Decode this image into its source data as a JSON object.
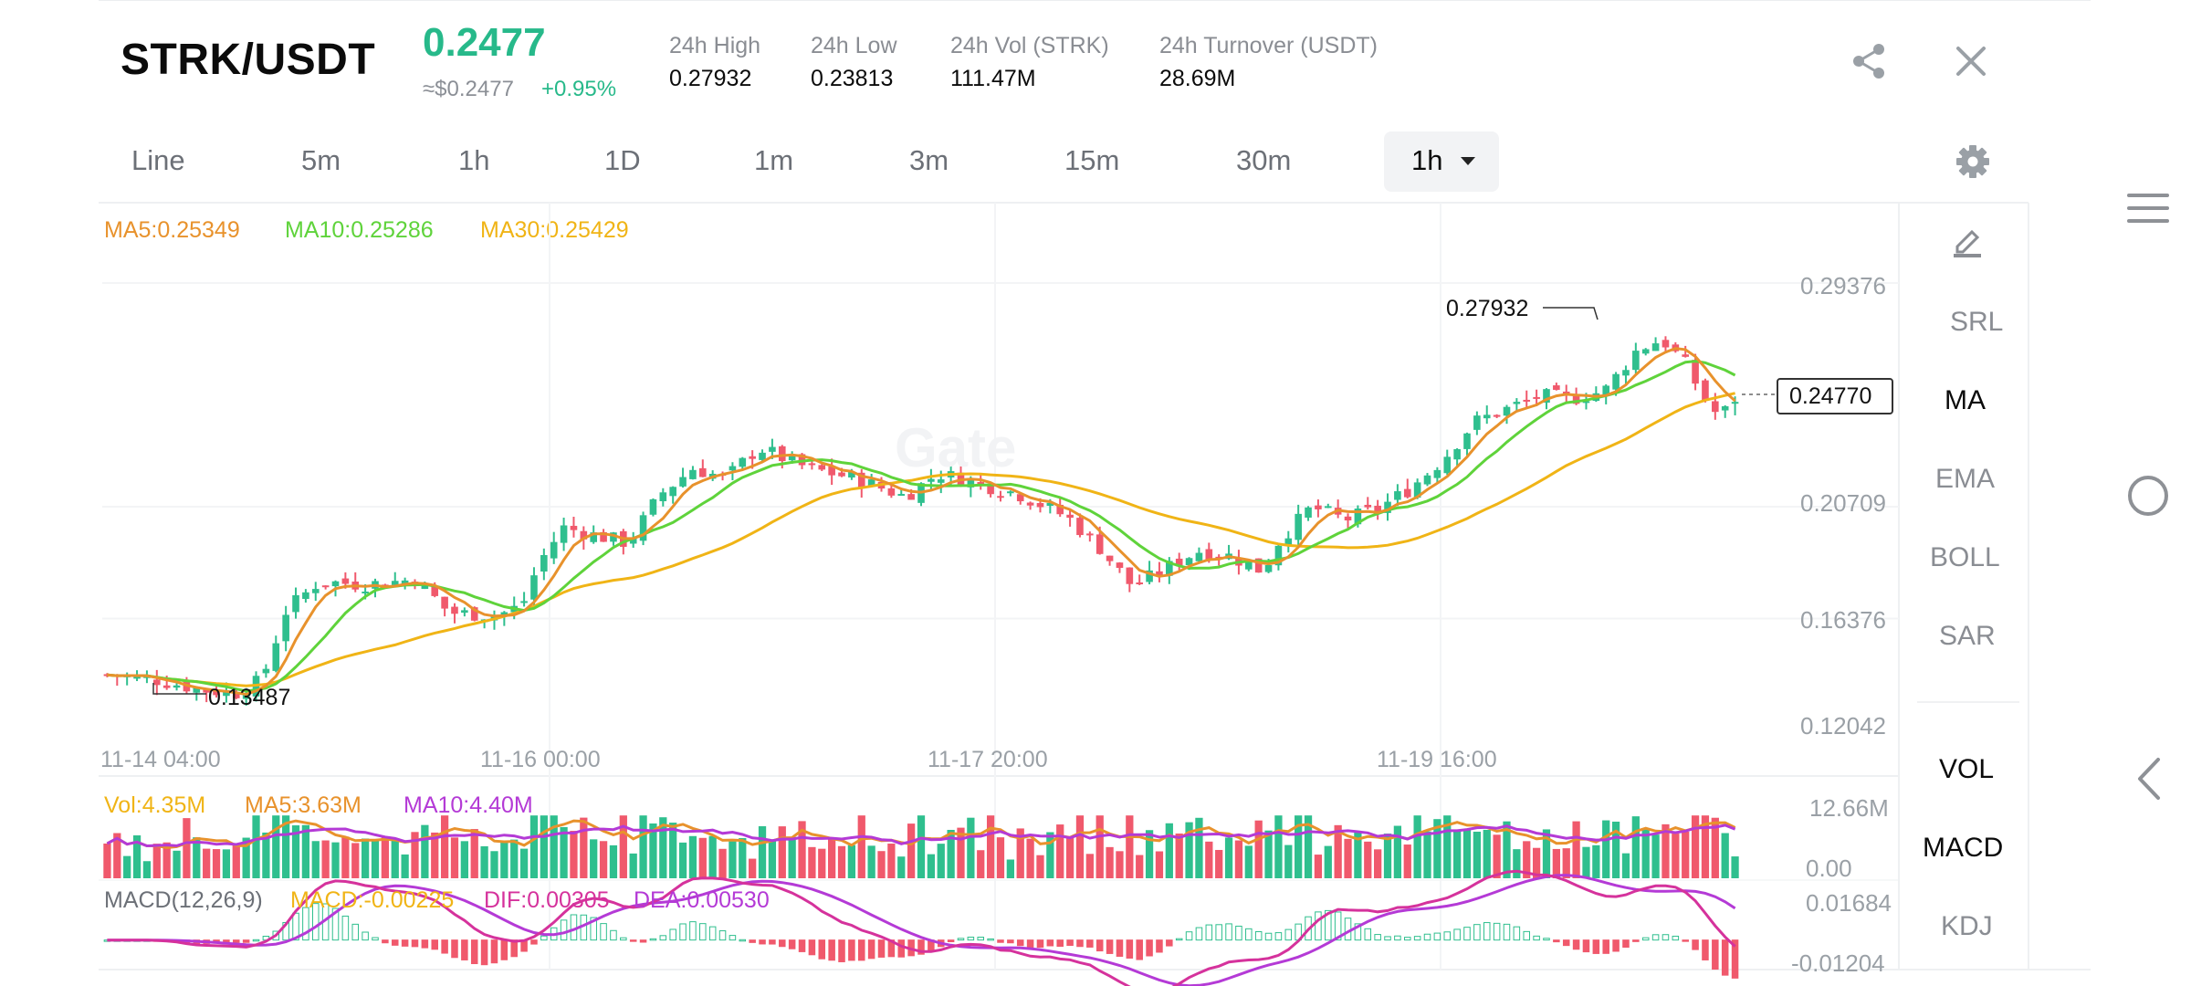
{
  "header": {
    "pair": "STRK/USDT",
    "last_price": "0.2477",
    "usd_price": "≈$0.2477",
    "change": "+0.95%",
    "stats": [
      {
        "label": "24h High",
        "value": "0.27932"
      },
      {
        "label": "24h Low",
        "value": "0.23813"
      },
      {
        "label": "24h Vol (STRK)",
        "value": "111.47M"
      },
      {
        "label": "24h Turnover (USDT)",
        "value": "28.69M"
      }
    ],
    "share_icon": "share-icon",
    "close_icon": "close-icon"
  },
  "timeframes": {
    "tabs": [
      "Line",
      "5m",
      "1h",
      "1D",
      "1m",
      "3m",
      "15m",
      "30m"
    ],
    "selected": "1h",
    "settings_icon": "gear-icon"
  },
  "indicators": {
    "ma5": "MA5:0.25349",
    "ma10": "MA10:0.25286",
    "ma30": "MA30:0.25429",
    "colors": {
      "ma5": "#e8922c",
      "ma10": "#5fd33b",
      "ma30": "#f0b416",
      "up": "#2fbf8e",
      "down": "#f0596c",
      "vol_ma10": "#b43ad6",
      "dif": "#d5329c"
    },
    "side_tools": [
      "SRL",
      "MA",
      "EMA",
      "BOLL",
      "SAR"
    ],
    "side_tools_active": "MA",
    "sub_tools": [
      "VOL",
      "MACD",
      "KDJ"
    ],
    "sub_tools_active": [
      "VOL",
      "MACD"
    ],
    "draw_icon": "pencil-icon"
  },
  "volume": {
    "vol": "Vol:4.35M",
    "ma5": "MA5:3.63M",
    "ma10": "MA10:4.40M",
    "y_max": "12.66M",
    "y_min": "0.00"
  },
  "macd": {
    "title": "MACD(12,26,9)",
    "macd": "MACD:-0.00225",
    "dif": "DIF:0.00305",
    "dea": "DEA:0.00530",
    "y_max": "0.01684",
    "y_min": "-0.01204"
  },
  "chart_data": {
    "type": "candlestick",
    "title": "",
    "y_ticks": [
      "0.29376",
      "0.20709",
      "0.16376",
      "0.12042"
    ],
    "x_ticks": [
      "11-14 04:00",
      "11-16 00:00",
      "11-17 20:00",
      "11-19 16:00"
    ],
    "high_marker": "0.27932",
    "low_marker": "0.13487",
    "current_price_label": "0.24770",
    "watermark": "Gate",
    "close_path": [
      {
        "t": 0.0,
        "v": 0.142
      },
      {
        "t": 0.03,
        "v": 0.14
      },
      {
        "t": 0.06,
        "v": 0.136
      },
      {
        "t": 0.08,
        "v": 0.135
      },
      {
        "t": 0.095,
        "v": 0.14
      },
      {
        "t": 0.11,
        "v": 0.167
      },
      {
        "t": 0.13,
        "v": 0.178
      },
      {
        "t": 0.16,
        "v": 0.177
      },
      {
        "t": 0.19,
        "v": 0.179
      },
      {
        "t": 0.21,
        "v": 0.166
      },
      {
        "t": 0.24,
        "v": 0.165
      },
      {
        "t": 0.255,
        "v": 0.169
      },
      {
        "t": 0.265,
        "v": 0.185
      },
      {
        "t": 0.28,
        "v": 0.199
      },
      {
        "t": 0.3,
        "v": 0.196
      },
      {
        "t": 0.32,
        "v": 0.193
      },
      {
        "t": 0.34,
        "v": 0.212
      },
      {
        "t": 0.36,
        "v": 0.222
      },
      {
        "t": 0.38,
        "v": 0.218
      },
      {
        "t": 0.4,
        "v": 0.23
      },
      {
        "t": 0.43,
        "v": 0.222
      },
      {
        "t": 0.46,
        "v": 0.218
      },
      {
        "t": 0.49,
        "v": 0.211
      },
      {
        "t": 0.51,
        "v": 0.22
      },
      {
        "t": 0.53,
        "v": 0.217
      },
      {
        "t": 0.56,
        "v": 0.212
      },
      {
        "t": 0.59,
        "v": 0.203
      },
      {
        "t": 0.61,
        "v": 0.191
      },
      {
        "t": 0.63,
        "v": 0.176
      },
      {
        "t": 0.65,
        "v": 0.183
      },
      {
        "t": 0.67,
        "v": 0.19
      },
      {
        "t": 0.69,
        "v": 0.188
      },
      {
        "t": 0.71,
        "v": 0.182
      },
      {
        "t": 0.72,
        "v": 0.194
      },
      {
        "t": 0.74,
        "v": 0.207
      },
      {
        "t": 0.76,
        "v": 0.202
      },
      {
        "t": 0.78,
        "v": 0.206
      },
      {
        "t": 0.8,
        "v": 0.214
      },
      {
        "t": 0.82,
        "v": 0.225
      },
      {
        "t": 0.84,
        "v": 0.24
      },
      {
        "t": 0.86,
        "v": 0.245
      },
      {
        "t": 0.88,
        "v": 0.25
      },
      {
        "t": 0.9,
        "v": 0.249
      },
      {
        "t": 0.92,
        "v": 0.252
      },
      {
        "t": 0.94,
        "v": 0.268
      },
      {
        "t": 0.955,
        "v": 0.272
      },
      {
        "t": 0.97,
        "v": 0.262
      },
      {
        "t": 0.98,
        "v": 0.25
      },
      {
        "t": 0.99,
        "v": 0.242
      },
      {
        "t": 1.0,
        "v": 0.2477
      }
    ]
  },
  "nav": {
    "menu_icon": "menu-icon",
    "home_icon": "home-circle-icon",
    "back_icon": "back-icon"
  }
}
